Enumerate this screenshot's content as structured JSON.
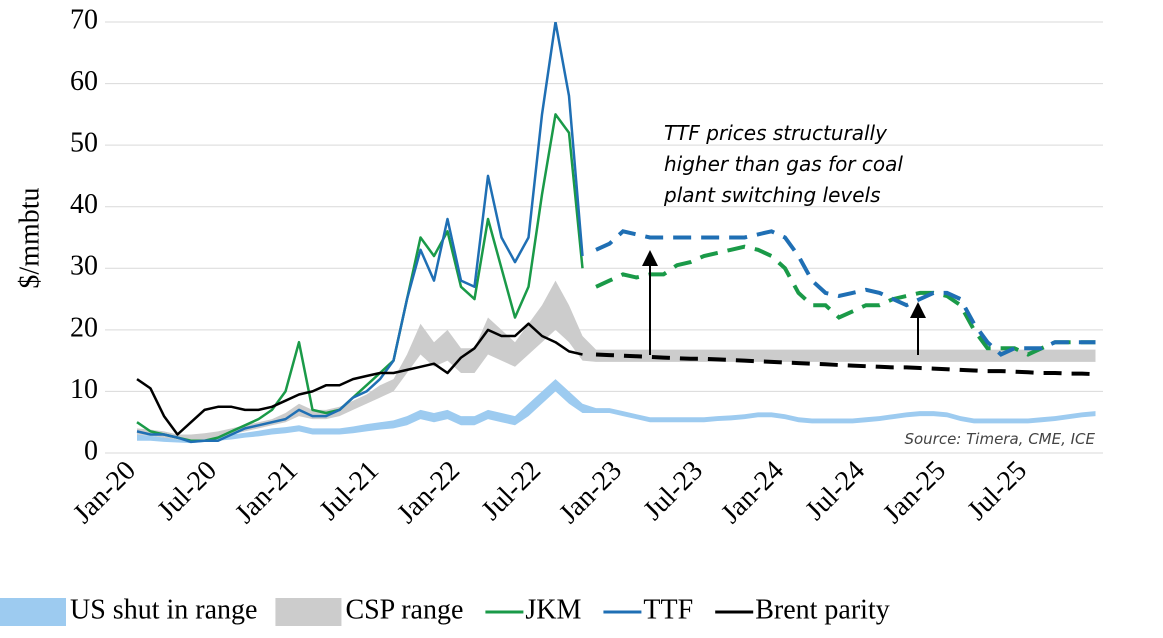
{
  "chart_data": {
    "type": "line",
    "y_label": "$/mmbtu",
    "annotation": [
      "TTF prices structurally",
      "higher than gas for coal",
      "plant switching levels"
    ],
    "source": "Source: Timera, CME, ICE",
    "categories": [
      "Jan-20",
      null,
      null,
      null,
      null,
      null,
      "Jul-20",
      null,
      null,
      null,
      null,
      null,
      "Jan-21",
      null,
      null,
      null,
      null,
      null,
      "Jul-21",
      null,
      null,
      null,
      null,
      null,
      "Jan-22",
      null,
      null,
      null,
      null,
      null,
      "Jul-22",
      null,
      null,
      null,
      null,
      null,
      "Jan-23",
      null,
      null,
      null,
      null,
      null,
      "Jul-23",
      null,
      null,
      null,
      null,
      null,
      "Jan-24",
      null,
      null,
      null,
      null,
      null,
      "Jul-24",
      null,
      null,
      null,
      null,
      null,
      "Jan-25",
      null,
      null,
      null,
      null,
      null,
      "Jul-25",
      null,
      null,
      null,
      null,
      null
    ],
    "ylim": [
      0,
      70
    ],
    "yticks": [
      0,
      10,
      20,
      30,
      40,
      50,
      60,
      70
    ],
    "grid": true,
    "series": [
      {
        "name": "US shut in range",
        "color": "#9dcbf0",
        "low": [
          2,
          2,
          1.8,
          1.7,
          1.6,
          1.8,
          2,
          2.2,
          2.5,
          2.7,
          3,
          3.2,
          3.5,
          3,
          3,
          3,
          3.2,
          3.5,
          3.8,
          4,
          4.5,
          5.5,
          5,
          5.5,
          4.5,
          4.5,
          5.5,
          5,
          4.5,
          6,
          8,
          10,
          8,
          6.5,
          6.5,
          6.5,
          6,
          5.5,
          5,
          5,
          5,
          5,
          5,
          5.2,
          5.3,
          5.5,
          5.8,
          5.8,
          5.5,
          5,
          4.8,
          4.8,
          4.8,
          4.8,
          5,
          5.2,
          5.5,
          5.8,
          6,
          6,
          5.8,
          5.2,
          4.8,
          4.8,
          4.8,
          4.8,
          4.8,
          5,
          5.2,
          5.5,
          5.8,
          6
        ],
        "high": [
          3,
          2.8,
          2.5,
          2.3,
          2.2,
          2.4,
          2.7,
          3,
          3.3,
          3.6,
          4,
          4.2,
          4.5,
          4,
          4,
          4,
          4.3,
          4.7,
          5,
          5.3,
          6,
          7,
          6.5,
          7,
          6,
          6,
          7,
          6.5,
          6,
          8,
          10,
          12,
          10,
          8,
          7.3,
          7.3,
          6.8,
          6.3,
          5.8,
          5.8,
          5.8,
          5.8,
          5.8,
          6,
          6.1,
          6.3,
          6.6,
          6.6,
          6.3,
          5.8,
          5.6,
          5.6,
          5.6,
          5.6,
          5.8,
          6,
          6.3,
          6.6,
          6.8,
          6.8,
          6.6,
          6,
          5.6,
          5.6,
          5.6,
          5.6,
          5.6,
          5.8,
          6,
          6.3,
          6.6,
          6.8
        ]
      },
      {
        "name": "CSP range",
        "color": "#cccccc",
        "low": [
          3,
          2.8,
          2.5,
          2.2,
          2,
          2.2,
          2.5,
          3,
          3.5,
          4,
          4.5,
          5,
          6,
          5.5,
          5.5,
          6,
          7,
          8,
          9,
          10,
          13,
          16,
          14,
          15,
          13,
          13,
          16,
          15,
          14,
          16,
          18,
          20,
          18,
          15,
          14.8,
          14.8,
          14.8,
          14.8,
          14.8,
          14.8,
          14.8,
          14.8,
          14.8,
          14.8,
          14.8,
          14.8,
          14.8,
          14.8,
          14.8,
          14.8,
          14.8,
          14.8,
          14.8,
          14.8,
          14.8,
          14.8,
          14.8,
          14.8,
          14.8,
          14.8,
          14.8,
          14.8,
          14.8,
          14.8,
          14.8,
          14.8,
          14.8,
          14.8,
          14.8,
          14.8,
          14.8,
          14.8
        ],
        "high": [
          4,
          3.8,
          3.5,
          3,
          3,
          3.2,
          3.5,
          4,
          4.5,
          5,
          5.5,
          6.5,
          8,
          7,
          7,
          7.5,
          8.5,
          9.5,
          11,
          12,
          16,
          21,
          18,
          20,
          17,
          17,
          22,
          20,
          18,
          21,
          24,
          28,
          24,
          19,
          16.8,
          16.8,
          16.8,
          16.8,
          16.8,
          16.8,
          16.8,
          16.8,
          16.8,
          16.8,
          16.8,
          16.8,
          16.8,
          16.8,
          16.8,
          16.8,
          16.8,
          16.8,
          16.8,
          16.8,
          16.8,
          16.8,
          16.8,
          16.8,
          16.8,
          16.8,
          16.8,
          16.8,
          16.8,
          16.8,
          16.8,
          16.8,
          16.8,
          16.8,
          16.8,
          16.8,
          16.8,
          16.8
        ]
      },
      {
        "name": "JKM",
        "color": "#1a9a48",
        "values": [
          5,
          3.5,
          3,
          2.5,
          2,
          2,
          2.5,
          3.5,
          4.5,
          5.5,
          7,
          10,
          18,
          7,
          6.5,
          7,
          9,
          11,
          13,
          15,
          25,
          35,
          32,
          36,
          27,
          25,
          38,
          30,
          22,
          27,
          42,
          55,
          52,
          30,
          null,
          null,
          null,
          null,
          null,
          null,
          null,
          null,
          null,
          null,
          null,
          null,
          null,
          null,
          null,
          null,
          null,
          null,
          null,
          null,
          null,
          null,
          null,
          null,
          null,
          null,
          null,
          null,
          null,
          null,
          null,
          null,
          null,
          null,
          null,
          null,
          null,
          null
        ],
        "forecast_values": [
          null,
          null,
          null,
          null,
          null,
          null,
          null,
          null,
          null,
          null,
          null,
          null,
          null,
          null,
          null,
          null,
          null,
          null,
          null,
          null,
          null,
          null,
          null,
          null,
          null,
          null,
          null,
          null,
          null,
          null,
          null,
          null,
          null,
          null,
          27,
          28,
          29,
          28.5,
          29,
          29,
          30.5,
          31,
          32,
          32.5,
          33,
          33.5,
          33,
          32,
          30,
          26,
          24,
          24,
          22,
          23,
          24,
          24,
          25,
          25.5,
          26,
          26,
          25.5,
          24,
          20,
          17,
          17,
          17,
          16,
          17,
          18,
          18,
          18,
          18
        ]
      },
      {
        "name": "TTF",
        "color": "#1f6fb4",
        "values": [
          3.5,
          3,
          3,
          2.5,
          1.8,
          2,
          2,
          3,
          4,
          4.5,
          5,
          5.5,
          7,
          6,
          6,
          7,
          9,
          10,
          12,
          15,
          25,
          33,
          28,
          38,
          28,
          27,
          45,
          35,
          31,
          35,
          55,
          70,
          58,
          32,
          null,
          null,
          null,
          null,
          null,
          null,
          null,
          null,
          null,
          null,
          null,
          null,
          null,
          null,
          null,
          null,
          null,
          null,
          null,
          null,
          null,
          null,
          null,
          null,
          null,
          null,
          null,
          null,
          null,
          null,
          null,
          null,
          null,
          null,
          null,
          null,
          null,
          null
        ],
        "forecast_values": [
          null,
          null,
          null,
          null,
          null,
          null,
          null,
          null,
          null,
          null,
          null,
          null,
          null,
          null,
          null,
          null,
          null,
          null,
          null,
          null,
          null,
          null,
          null,
          null,
          null,
          null,
          null,
          null,
          null,
          null,
          null,
          null,
          null,
          null,
          33,
          34,
          36,
          35.5,
          35,
          35,
          35,
          35,
          35,
          35,
          35,
          35,
          35.5,
          36,
          35,
          32,
          28,
          26,
          25.5,
          26,
          26.5,
          26,
          25,
          24,
          25,
          26,
          26,
          25,
          21,
          18,
          16,
          17,
          17,
          17,
          18,
          18,
          18,
          18
        ]
      },
      {
        "name": "Brent parity",
        "color": "#000000",
        "values": [
          12,
          10.5,
          6,
          3,
          5,
          7,
          7.5,
          7.5,
          7,
          7,
          7.5,
          8.5,
          9.5,
          10,
          11,
          11,
          12,
          12.5,
          13,
          13,
          13.5,
          14,
          14.5,
          13,
          15.5,
          17,
          20,
          19,
          19,
          21,
          19,
          18,
          16.5,
          16,
          null,
          null,
          null,
          null,
          null,
          null,
          null,
          null,
          null,
          null,
          null,
          null,
          null,
          null,
          null,
          null,
          null,
          null,
          null,
          null,
          null,
          null,
          null,
          null,
          null,
          null,
          null,
          null,
          null,
          null,
          null,
          null,
          null,
          null,
          null,
          null,
          null,
          null
        ],
        "forecast_values": [
          null,
          null,
          null,
          null,
          null,
          null,
          null,
          null,
          null,
          null,
          null,
          null,
          null,
          null,
          null,
          null,
          null,
          null,
          null,
          null,
          null,
          null,
          null,
          null,
          null,
          null,
          null,
          null,
          null,
          null,
          null,
          null,
          null,
          null,
          16,
          15.9,
          15.8,
          15.7,
          15.6,
          15.5,
          15.4,
          15.3,
          15.3,
          15.2,
          15.1,
          15,
          14.9,
          14.8,
          14.7,
          14.6,
          14.5,
          14.4,
          14.3,
          14.2,
          14.1,
          14,
          13.9,
          13.9,
          13.8,
          13.7,
          13.6,
          13.5,
          13.4,
          13.3,
          13.3,
          13.2,
          13.1,
          13,
          13,
          12.9,
          12.9,
          12.8
        ]
      }
    ]
  }
}
